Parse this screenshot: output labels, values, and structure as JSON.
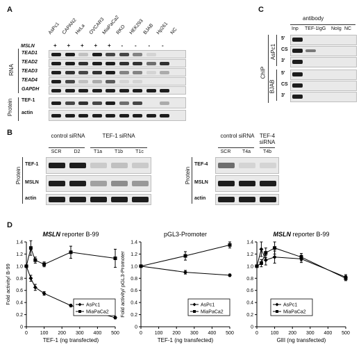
{
  "panelA": {
    "letter": "A",
    "cell_lines": [
      "AsPc1",
      "CAPAN2",
      "HeLa",
      "OVCAR3",
      "MiaPaCa2",
      "RKO",
      "HEK293",
      "BJAB",
      "Hp261",
      "NC"
    ],
    "msln_label": "MSLN",
    "msln_status": [
      "+",
      "+",
      "+",
      "+",
      "+",
      "-",
      "-",
      "-",
      "-",
      ""
    ],
    "rna_label": "RNA",
    "rna_rows": [
      "TEAD1",
      "TEAD2",
      "TEAD3",
      "TEAD4",
      "GAPDH"
    ],
    "protein_label": "Protein",
    "protein_rows": [
      "TEF-1",
      "actin"
    ]
  },
  "panelB": {
    "letter": "B",
    "left": {
      "group1": "control siRNA",
      "group2": "TEF-1 siRNA",
      "lanes": [
        "SCR",
        "D2",
        "T1a",
        "T1b",
        "T1c"
      ],
      "rows": [
        "TEF-1",
        "MSLN",
        "actin"
      ],
      "side_label": "Protein"
    },
    "right": {
      "group1": "control siRNA",
      "group2": "TEF-4 siRNA",
      "lanes": [
        "SCR",
        "T4a",
        "T4b"
      ],
      "rows": [
        "TEF-4",
        "MSLN",
        "actin"
      ],
      "side_label": "Protein"
    }
  },
  "panelC": {
    "letter": "C",
    "header": "antibody",
    "columns": [
      "Inp",
      "TEF-1",
      "IgG",
      "NoIg",
      "NC"
    ],
    "chip_label": "ChIP",
    "groups": [
      {
        "name": "AsPc1",
        "rows": [
          "5'",
          "CS",
          "3'"
        ]
      },
      {
        "name": "BJAB",
        "rows": [
          "5'",
          "CS",
          "3'"
        ]
      }
    ]
  },
  "panelD": {
    "letter": "D",
    "chart_data": [
      {
        "type": "line",
        "title_italic": "MSLN",
        "title_rest": " reporter B-99",
        "xlabel": "TEF-1 (ng transfected)",
        "ylabel": "Fold activity/ B-99",
        "xlim": [
          0,
          500
        ],
        "ylim": [
          0,
          1.4
        ],
        "xticks": [
          0,
          100,
          200,
          300,
          400,
          500
        ],
        "yticks": [
          0,
          0.2,
          0.4,
          0.6,
          0.8,
          1.0,
          1.2,
          1.4
        ],
        "legend": "right",
        "series": [
          {
            "name": "AsPc1",
            "marker": "diamond",
            "x": [
              0,
              25,
              50,
              100,
              250,
              500
            ],
            "y": [
              1.0,
              0.8,
              0.65,
              0.55,
              0.35,
              0.15
            ]
          },
          {
            "name": "MiaPaCa2",
            "marker": "square",
            "x": [
              0,
              25,
              50,
              100,
              250,
              500
            ],
            "y": [
              1.0,
              1.3,
              1.1,
              1.03,
              1.23,
              1.13
            ]
          }
        ]
      },
      {
        "type": "line",
        "title_italic": "",
        "title_rest": "pGL3-Promoter",
        "xlabel": "TEF-1 (ng transfected)",
        "ylabel": "Fold activity/ pGL3-Promoter",
        "xlim": [
          0,
          500
        ],
        "ylim": [
          0,
          1.4
        ],
        "xticks": [
          0,
          100,
          200,
          300,
          400,
          500
        ],
        "yticks": [
          0,
          0.2,
          0.4,
          0.6,
          0.8,
          1.0,
          1.2,
          1.4
        ],
        "legend": "right",
        "series": [
          {
            "name": "AsPc1",
            "marker": "diamond",
            "x": [
              0,
              250,
              500
            ],
            "y": [
              1.0,
              0.9,
              0.85
            ]
          },
          {
            "name": "MiaPaCa2",
            "marker": "square",
            "x": [
              0,
              250,
              500
            ],
            "y": [
              1.0,
              1.17,
              1.35
            ]
          }
        ]
      },
      {
        "type": "line",
        "title_italic": "MSLN",
        "title_rest": " reporter B-99",
        "xlabel": "GlII (ng transfected)",
        "ylabel": "",
        "xlim": [
          0,
          500
        ],
        "ylim": [
          0,
          1.4
        ],
        "xticks": [
          0,
          100,
          200,
          300,
          400,
          500
        ],
        "yticks": [
          0,
          0.2,
          0.4,
          0.6,
          0.8,
          1.0,
          1.2,
          1.4
        ],
        "legend": "bottom-center",
        "series": [
          {
            "name": "AsPc1",
            "marker": "diamond",
            "x": [
              0,
              25,
              50,
              100,
              250,
              500
            ],
            "y": [
              1.0,
              1.28,
              1.1,
              1.15,
              1.12,
              0.82
            ]
          },
          {
            "name": "MiaPaCa2",
            "marker": "square",
            "x": [
              0,
              25,
              50,
              100,
              250,
              500
            ],
            "y": [
              1.0,
              1.05,
              1.22,
              1.3,
              1.15,
              0.8
            ]
          }
        ]
      }
    ]
  }
}
